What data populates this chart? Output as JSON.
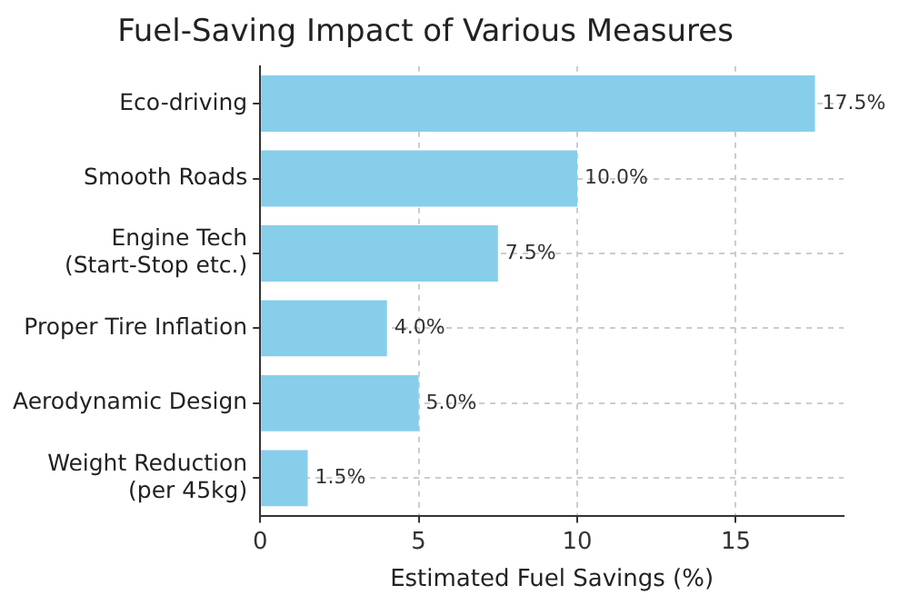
{
  "chart_data": {
    "type": "bar",
    "orientation": "horizontal",
    "title": "Fuel-Saving Impact of Various Measures",
    "xlabel": "Estimated Fuel Savings (%)",
    "categories": [
      "Eco-driving",
      "Smooth Roads",
      "Engine Tech\n(Start-Stop etc.)",
      "Proper Tire Inflation",
      "Aerodynamic Design",
      "Weight Reduction\n(per 45kg)"
    ],
    "values": [
      17.5,
      10.0,
      7.5,
      4.0,
      5.0,
      1.5
    ],
    "value_labels": [
      "17.5%",
      "10.0%",
      "7.5%",
      "4.0%",
      "5.0%",
      "1.5%"
    ],
    "color": "#87ceeb",
    "xlim": [
      0,
      18.4
    ],
    "xticks": [
      0,
      5,
      10,
      15
    ],
    "grid": true
  }
}
